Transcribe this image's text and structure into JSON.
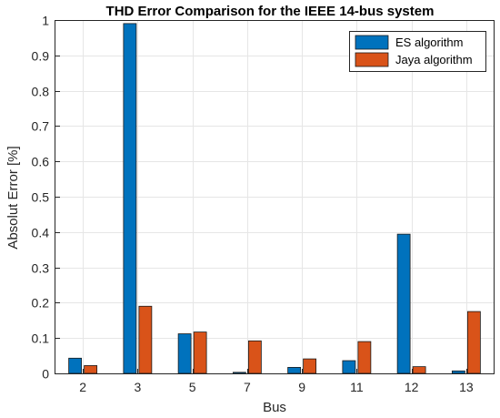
{
  "chart_data": {
    "type": "bar",
    "title": "THD Error Comparison for the IEEE 14-bus system",
    "xlabel": "Bus",
    "ylabel": "Absolut Error [%]",
    "categories": [
      "2",
      "3",
      "5",
      "7",
      "9",
      "11",
      "12",
      "13"
    ],
    "series": [
      {
        "name": "ES algorithm",
        "color": "#0072BD",
        "values": [
          0.043,
          0.99,
          0.112,
          0.003,
          0.017,
          0.036,
          0.394,
          0.007
        ]
      },
      {
        "name": "Jaya algorithm",
        "color": "#D95319",
        "values": [
          0.022,
          0.19,
          0.117,
          0.092,
          0.041,
          0.09,
          0.019,
          0.175
        ]
      }
    ],
    "ylim": [
      0,
      1
    ],
    "yticks": [
      "0",
      "0.1",
      "0.2",
      "0.3",
      "0.4",
      "0.5",
      "0.6",
      "0.7",
      "0.8",
      "0.9",
      "1"
    ],
    "grid": true,
    "legend_position": "top-right"
  }
}
